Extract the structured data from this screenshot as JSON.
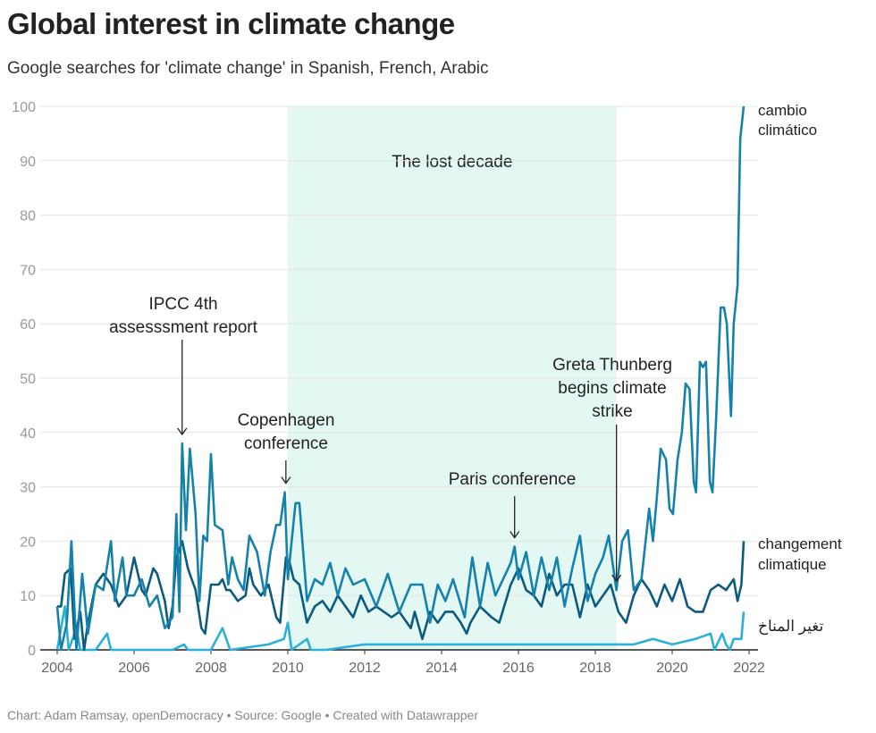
{
  "title": "Global interest in climate change",
  "subtitle": "Google searches for 'climate change' in Spanish, French, Arabic",
  "footer": "Chart: Adam Ramsay, openDemocracy • Source: Google • Created with Datawrapper",
  "chart_data": {
    "type": "line",
    "xlim": [
      2004,
      2022
    ],
    "ylim": [
      0,
      100
    ],
    "xticks": [
      "2004",
      "2006",
      "2008",
      "2010",
      "2012",
      "2014",
      "2016",
      "2018",
      "2020",
      "2022"
    ],
    "yticks": [
      "0",
      "10",
      "20",
      "30",
      "40",
      "50",
      "60",
      "70",
      "80",
      "90",
      "100"
    ],
    "grid": true,
    "shaded_range": {
      "from": 2010,
      "to": 2018.55,
      "label": "The lost decade",
      "color": "#e3f8f3"
    },
    "annotations": [
      {
        "lines": [
          "IPCC 4th",
          "assesssment report"
        ],
        "x": 2007.25,
        "y": 38
      },
      {
        "lines": [
          "Copenhagen",
          "conference"
        ],
        "x": 2009.95,
        "y": 29
      },
      {
        "lines": [
          "Paris conference"
        ],
        "x": 2015.9,
        "y": 19
      },
      {
        "lines": [
          "Greta Thunberg",
          "begins climate",
          "strike"
        ],
        "x": 2018.55,
        "y": 11
      }
    ],
    "series": [
      {
        "name_lines": [
          "cambio",
          "climático"
        ],
        "color": "#1582ab",
        "x": [
          2004.0,
          2004.1,
          2004.25,
          2004.37,
          2004.5,
          2004.65,
          2004.8,
          2005.0,
          2005.2,
          2005.4,
          2005.5,
          2005.7,
          2005.8,
          2006.0,
          2006.2,
          2006.4,
          2006.6,
          2006.8,
          2007.0,
          2007.1,
          2007.18,
          2007.25,
          2007.35,
          2007.45,
          2007.6,
          2007.7,
          2007.8,
          2007.9,
          2008.0,
          2008.1,
          2008.3,
          2008.45,
          2008.55,
          2008.7,
          2008.85,
          2009.0,
          2009.2,
          2009.4,
          2009.55,
          2009.7,
          2009.8,
          2009.92,
          2010.0,
          2010.2,
          2010.3,
          2010.5,
          2010.7,
          2010.9,
          2011.1,
          2011.3,
          2011.5,
          2011.7,
          2012.0,
          2012.3,
          2012.6,
          2012.9,
          2013.2,
          2013.5,
          2013.7,
          2013.9,
          2014.1,
          2014.3,
          2014.6,
          2014.8,
          2015.0,
          2015.2,
          2015.4,
          2015.6,
          2015.8,
          2015.9,
          2016.0,
          2016.2,
          2016.4,
          2016.6,
          2016.8,
          2017.0,
          2017.2,
          2017.4,
          2017.6,
          2017.8,
          2018.0,
          2018.2,
          2018.35,
          2018.55,
          2018.7,
          2018.85,
          2019.0,
          2019.2,
          2019.4,
          2019.5,
          2019.6,
          2019.7,
          2019.84,
          2019.93,
          2020.02,
          2020.14,
          2020.25,
          2020.35,
          2020.45,
          2020.56,
          2020.62,
          2020.72,
          2020.8,
          2020.88,
          2020.98,
          2021.05,
          2021.14,
          2021.26,
          2021.35,
          2021.42,
          2021.53,
          2021.6,
          2021.7,
          2021.77,
          2021.86
        ],
        "y": [
          8,
          0,
          5,
          20,
          0,
          14,
          3,
          12,
          11,
          20,
          9,
          17,
          10,
          10,
          13,
          8,
          10,
          4,
          6,
          25,
          7,
          38,
          22,
          37,
          25,
          9,
          21,
          20,
          36,
          23,
          22,
          12,
          17,
          13,
          11,
          21,
          18,
          10,
          18,
          23,
          23,
          29,
          13,
          27,
          27,
          9,
          13,
          12,
          16,
          10,
          15,
          12,
          13,
          8,
          14,
          7,
          12,
          12,
          5,
          12,
          9,
          13,
          6,
          17,
          8,
          16,
          10,
          13,
          16,
          19,
          13,
          18,
          10,
          17,
          11,
          17,
          8,
          15,
          21,
          9,
          14,
          17,
          21,
          11,
          20,
          22,
          11,
          13,
          26,
          20,
          28,
          37,
          35,
          26,
          25,
          35,
          40,
          49,
          48,
          31,
          29,
          53,
          52,
          53,
          31,
          29,
          42,
          63,
          63,
          60,
          43,
          60,
          67,
          94,
          100
        ]
      },
      {
        "name_lines": [
          "changement",
          "climatique"
        ],
        "color": "#0b5a80",
        "x": [
          2004.0,
          2004.1,
          2004.2,
          2004.35,
          2004.45,
          2004.6,
          2004.7,
          2004.8,
          2005.0,
          2005.2,
          2005.4,
          2005.6,
          2005.8,
          2006.0,
          2006.2,
          2006.3,
          2006.5,
          2006.6,
          2006.8,
          2006.9,
          2007.0,
          2007.1,
          2007.25,
          2007.4,
          2007.5,
          2007.6,
          2007.75,
          2007.85,
          2008.0,
          2008.2,
          2008.3,
          2008.4,
          2008.5,
          2008.7,
          2008.9,
          2009.0,
          2009.1,
          2009.3,
          2009.5,
          2009.7,
          2009.8,
          2009.95,
          2010.05,
          2010.15,
          2010.3,
          2010.5,
          2010.7,
          2010.9,
          2011.1,
          2011.3,
          2011.5,
          2011.7,
          2011.9,
          2012.1,
          2012.3,
          2012.5,
          2012.7,
          2012.9,
          2013.2,
          2013.3,
          2013.5,
          2013.7,
          2013.9,
          2014.1,
          2014.3,
          2014.5,
          2014.65,
          2014.75,
          2015.0,
          2015.3,
          2015.5,
          2015.8,
          2016.0,
          2016.2,
          2016.4,
          2016.6,
          2016.8,
          2017.0,
          2017.2,
          2017.4,
          2017.6,
          2017.8,
          2018.0,
          2018.2,
          2018.4,
          2018.6,
          2018.8,
          2019.0,
          2019.2,
          2019.4,
          2019.6,
          2019.8,
          2020.0,
          2020.2,
          2020.4,
          2020.6,
          2020.8,
          2021.0,
          2021.2,
          2021.4,
          2021.6,
          2021.7,
          2021.8,
          2021.86
        ],
        "y": [
          8,
          8,
          14,
          15,
          2,
          7,
          0,
          5,
          12,
          14,
          12,
          8,
          10,
          17,
          11,
          10,
          15,
          14,
          9,
          4,
          8,
          17,
          20,
          15,
          13,
          11,
          4,
          3,
          12,
          12,
          13,
          11,
          11,
          9,
          10,
          15,
          12,
          10,
          12,
          6,
          5,
          17,
          16,
          13,
          12,
          5,
          8,
          9,
          7,
          10,
          8,
          6,
          10,
          7,
          8,
          7,
          6,
          7,
          4,
          7,
          2,
          7,
          5,
          7,
          7,
          5,
          3,
          5,
          8,
          6,
          5,
          12,
          15,
          11,
          10,
          8,
          14,
          10,
          12,
          12,
          6,
          12,
          8,
          10,
          12,
          7,
          5,
          10,
          13,
          11,
          8,
          12,
          9,
          13,
          8,
          7,
          7,
          11,
          12,
          11,
          13,
          9,
          12,
          20
        ]
      },
      {
        "name_lines": [
          "تغير المناخ"
        ],
        "color": "#2bb0d8",
        "x": [
          2004.0,
          2004.2,
          2004.3,
          2004.5,
          2004.6,
          2005.0,
          2005.3,
          2005.4,
          2006.0,
          2007.0,
          2007.3,
          2007.4,
          2008.0,
          2008.3,
          2008.5,
          2009.5,
          2009.9,
          2010.0,
          2010.1,
          2010.5,
          2010.6,
          2011.0,
          2012.0,
          2013.0,
          2014.0,
          2015.0,
          2016.0,
          2017.0,
          2018.0,
          2018.5,
          2019.0,
          2019.5,
          2020.0,
          2020.6,
          2021.0,
          2021.1,
          2021.3,
          2021.4,
          2021.5,
          2021.6,
          2021.8,
          2021.86
        ],
        "y": [
          0,
          8,
          0,
          4,
          0,
          0,
          3,
          0,
          0,
          0,
          1,
          0,
          0,
          4,
          0,
          1,
          2,
          5,
          0,
          2,
          0,
          0,
          1,
          1,
          1,
          1,
          1,
          1,
          1,
          1,
          1,
          2,
          1,
          2,
          3,
          0,
          3,
          1,
          0,
          2,
          2,
          7
        ]
      }
    ]
  }
}
